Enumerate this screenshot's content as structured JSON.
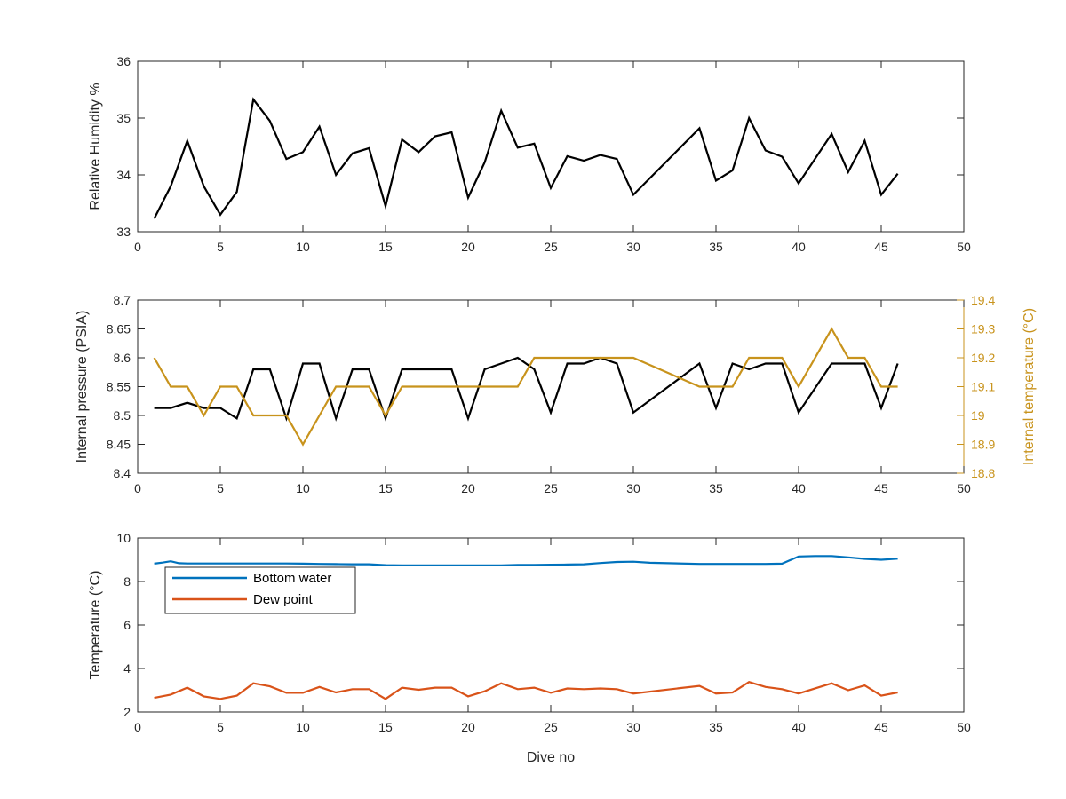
{
  "colors": {
    "humidity": "#000000",
    "pressure": "#000000",
    "internal_temperature": "#C8931C",
    "bottom_water": "#0072BD",
    "dew_point": "#D95319",
    "axis": "#262626"
  },
  "chart_data": [
    {
      "type": "line",
      "xlabel": "",
      "ylabel": "Relative Humidity %",
      "xlim": [
        0,
        50
      ],
      "ylim": [
        33,
        36
      ],
      "xticks": [
        "0",
        "5",
        "10",
        "15",
        "20",
        "25",
        "30",
        "35",
        "40",
        "45",
        "50"
      ],
      "yticks": [
        "33",
        "34",
        "35",
        "36"
      ],
      "grid": false,
      "series": [
        {
          "x": [
            1,
            2,
            3,
            4,
            5,
            6,
            7,
            8,
            9,
            10,
            11,
            12,
            13,
            14,
            15,
            16,
            17,
            18,
            19,
            20,
            21,
            22,
            23,
            24,
            25,
            26,
            27,
            28,
            29,
            30,
            34,
            35,
            36,
            37,
            38,
            39,
            40,
            42,
            43,
            44,
            45,
            46
          ],
          "values": [
            33.23,
            33.8,
            34.6,
            33.8,
            33.3,
            33.7,
            35.33,
            34.95,
            34.28,
            34.4,
            34.85,
            34.0,
            34.38,
            34.47,
            33.45,
            34.62,
            34.4,
            34.68,
            34.75,
            33.6,
            34.22,
            35.13,
            34.48,
            34.55,
            33.77,
            34.33,
            34.25,
            34.35,
            34.28,
            33.65,
            34.82,
            33.9,
            34.08,
            35.0,
            34.43,
            34.32,
            33.85,
            34.72,
            34.05,
            34.6,
            33.65,
            34.02
          ]
        }
      ]
    },
    {
      "type": "line",
      "xlabel": "",
      "ylabel": "Internal pressure (PSIA)",
      "y2label": "Internal temperature (°C)",
      "xlim": [
        0,
        50
      ],
      "ylim": [
        8.4,
        8.7
      ],
      "y2lim": [
        18.8,
        19.4
      ],
      "xticks": [
        "0",
        "5",
        "10",
        "15",
        "20",
        "25",
        "30",
        "35",
        "40",
        "45",
        "50"
      ],
      "yticks": [
        "8.4",
        "8.45",
        "8.5",
        "8.55",
        "8.6",
        "8.65",
        "8.7"
      ],
      "y2ticks": [
        "18.8",
        "18.9",
        "19",
        "19.1",
        "19.2",
        "19.3",
        "19.4"
      ],
      "grid": false,
      "series": [
        {
          "axis": "left",
          "x": [
            1,
            2,
            3,
            4,
            5,
            6,
            7,
            8,
            9,
            10,
            11,
            12,
            13,
            14,
            15,
            16,
            17,
            18,
            19,
            20,
            21,
            22,
            23,
            24,
            25,
            26,
            27,
            28,
            29,
            30,
            34,
            35,
            36,
            37,
            38,
            39,
            40,
            42,
            43,
            44,
            45,
            46
          ],
          "values": [
            8.513,
            8.513,
            8.522,
            8.513,
            8.513,
            8.495,
            8.58,
            8.58,
            8.495,
            8.59,
            8.59,
            8.495,
            8.58,
            8.58,
            8.495,
            8.58,
            8.58,
            8.58,
            8.58,
            8.495,
            8.58,
            8.59,
            8.6,
            8.58,
            8.505,
            8.59,
            8.59,
            8.6,
            8.59,
            8.505,
            8.59,
            8.513,
            8.59,
            8.58,
            8.59,
            8.59,
            8.505,
            8.59,
            8.59,
            8.59,
            8.513,
            8.59
          ]
        },
        {
          "axis": "right",
          "x": [
            1,
            2,
            3,
            4,
            5,
            6,
            7,
            8,
            9,
            10,
            11,
            12,
            13,
            14,
            15,
            16,
            17,
            18,
            19,
            20,
            21,
            22,
            23,
            24,
            25,
            26,
            27,
            28,
            29,
            30,
            34,
            35,
            36,
            37,
            38,
            39,
            40,
            42,
            43,
            44,
            45,
            46
          ],
          "values": [
            19.2,
            19.1,
            19.1,
            19.0,
            19.1,
            19.1,
            19.0,
            19.0,
            19.0,
            18.9,
            19.0,
            19.1,
            19.1,
            19.1,
            19.0,
            19.1,
            19.1,
            19.1,
            19.1,
            19.1,
            19.1,
            19.1,
            19.1,
            19.2,
            19.2,
            19.2,
            19.2,
            19.2,
            19.2,
            19.2,
            19.1,
            19.1,
            19.1,
            19.2,
            19.2,
            19.2,
            19.1,
            19.3,
            19.2,
            19.2,
            19.1,
            19.1
          ]
        }
      ]
    },
    {
      "type": "line",
      "xlabel": "Dive no",
      "ylabel": "Temperature (°C)",
      "xlim": [
        0,
        50
      ],
      "ylim": [
        2,
        10
      ],
      "xticks": [
        "0",
        "5",
        "10",
        "15",
        "20",
        "25",
        "30",
        "35",
        "40",
        "45",
        "50"
      ],
      "yticks": [
        "2",
        "4",
        "6",
        "8",
        "10"
      ],
      "grid": false,
      "legend": "top-left",
      "series": [
        {
          "name": "Bottom water",
          "x": [
            1,
            1.5,
            2,
            2.5,
            3,
            4,
            5,
            6,
            7,
            8,
            9,
            10,
            11,
            12,
            13,
            14,
            15,
            16,
            17,
            18,
            19,
            20,
            21,
            22,
            23,
            24,
            25,
            26,
            27,
            28,
            29,
            30,
            31,
            34,
            35,
            36,
            37,
            38,
            39,
            40,
            41,
            42,
            43,
            44,
            45,
            46
          ],
          "values": [
            8.82,
            8.87,
            8.93,
            8.84,
            8.83,
            8.83,
            8.83,
            8.83,
            8.83,
            8.83,
            8.83,
            8.82,
            8.81,
            8.8,
            8.79,
            8.79,
            8.75,
            8.74,
            8.74,
            8.74,
            8.74,
            8.74,
            8.74,
            8.74,
            8.76,
            8.76,
            8.77,
            8.78,
            8.79,
            8.85,
            8.9,
            8.91,
            8.86,
            8.81,
            8.81,
            8.81,
            8.81,
            8.81,
            8.82,
            9.15,
            9.17,
            9.17,
            9.11,
            9.04,
            9.0,
            9.05
          ]
        },
        {
          "name": "Dew point",
          "x": [
            1,
            2,
            3,
            4,
            5,
            6,
            7,
            8,
            9,
            10,
            11,
            12,
            13,
            14,
            15,
            16,
            17,
            18,
            19,
            20,
            21,
            22,
            23,
            24,
            25,
            26,
            27,
            28,
            29,
            30,
            34,
            35,
            36,
            37,
            38,
            39,
            40,
            42,
            43,
            44,
            45,
            46
          ],
          "values": [
            2.65,
            2.8,
            3.12,
            2.72,
            2.6,
            2.75,
            3.32,
            3.18,
            2.88,
            2.88,
            3.15,
            2.9,
            3.05,
            3.05,
            2.6,
            3.12,
            3.02,
            3.12,
            3.12,
            2.72,
            2.95,
            3.32,
            3.05,
            3.12,
            2.88,
            3.08,
            3.05,
            3.08,
            3.05,
            2.85,
            3.2,
            2.85,
            2.9,
            3.38,
            3.15,
            3.05,
            2.85,
            3.32,
            3.0,
            3.22,
            2.75,
            2.9
          ]
        }
      ]
    }
  ]
}
